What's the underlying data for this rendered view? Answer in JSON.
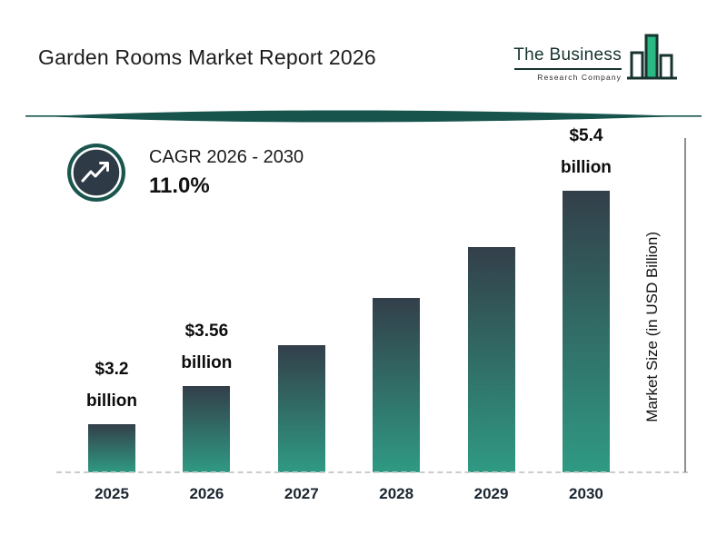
{
  "header": {
    "title": "Garden Rooms Market Report 2026"
  },
  "logo": {
    "line1": "The Business",
    "line2": "Research Company"
  },
  "cagr": {
    "label": "CAGR 2026 - 2030",
    "value": "11.0%"
  },
  "colors": {
    "accent_teal": "#17544c",
    "bar_gradient_top": "#333f4a",
    "bar_gradient_bottom": "#2f9a83",
    "logo_green": "#2ab885"
  },
  "chart_data": {
    "type": "bar",
    "title": "Garden Rooms Market Report 2026",
    "categories": [
      "2025",
      "2026",
      "2027",
      "2028",
      "2029",
      "2030"
    ],
    "values": [
      3.2,
      3.56,
      3.95,
      4.39,
      4.87,
      5.4
    ],
    "bar_labels": [
      [
        "$3.2",
        "billion"
      ],
      [
        "$3.56",
        "billion"
      ],
      null,
      null,
      null,
      [
        "$5.4",
        "billion"
      ]
    ],
    "xlabel": "",
    "ylabel": "Market Size (in USD Billion)",
    "legend": false,
    "gridlines": false,
    "value_axis_ticks_visible": false
  }
}
